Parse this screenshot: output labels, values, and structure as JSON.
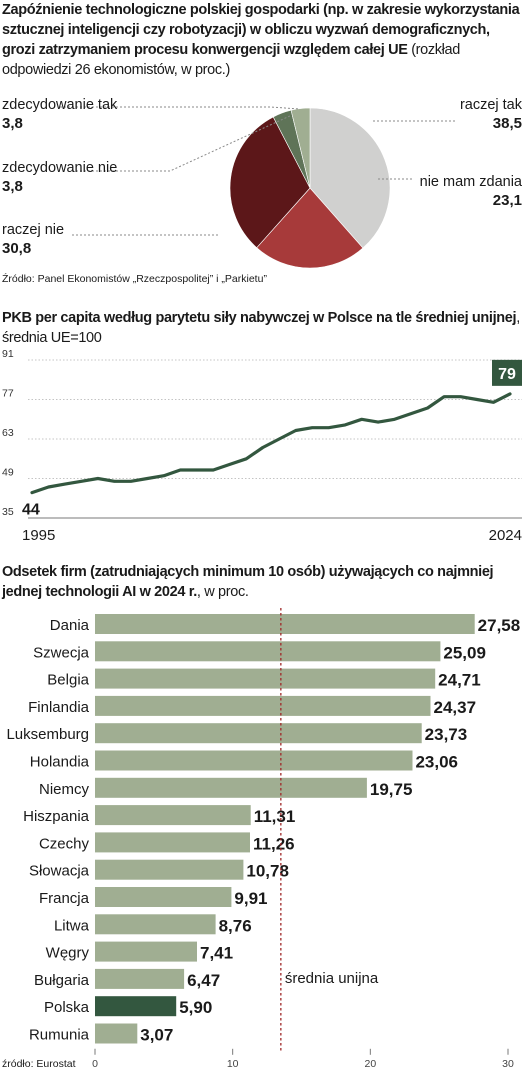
{
  "pie_section": {
    "title_bold": "Zapóźnienie technologiczne polskiej gospodarki (np. w zakresie wykorzystania sztucznej inteligencji czy robotyzacji) w obliczu wyzwań demograficznych, grozi zatrzymaniem procesu konwergencji względem całej UE",
    "title_sub": " (rozkład odpowiedzi 26 ekonomistów, w proc.)",
    "source": "Źródło: Panel Ekonomistów „Rzeczpospolitej” i „Parkietu”"
  },
  "line_section": {
    "title_bold": "PKB per capita według parytetu siły nabywczej w Polsce na tle średniej unijnej",
    "title_sub": ", średnia UE=100"
  },
  "bar_section": {
    "title_bold": "Odsetek firm (zatrudniających minimum 10 osób) używających co najmniej jednej technologii AI w 2024 r.",
    "title_sub": ", w proc.",
    "average_label": "średnia unijna",
    "source": "źródło: Eurostat"
  },
  "colors": {
    "pie_raczej_tak": "#d0d0cf",
    "pie_nie_mam_zdania": "#a73a3a",
    "pie_raczej_nie": "#5c1719",
    "pie_zdecydowanie_nie": "#5f7458",
    "pie_zdecydowanie_tak": "#a0ae92",
    "line": "#33573f",
    "bar": "#a0ae92",
    "bar_highlight": "#33573f",
    "average_line": "#a02828"
  },
  "chart_data": [
    {
      "type": "pie",
      "slices": [
        {
          "label": "raczej tak",
          "value": 38.5,
          "value_text": "38,5",
          "color_key": "pie_raczej_tak"
        },
        {
          "label": "nie mam zdania",
          "value": 23.1,
          "value_text": "23,1",
          "color_key": "pie_nie_mam_zdania"
        },
        {
          "label": "raczej nie",
          "value": 30.8,
          "value_text": "30,8",
          "color_key": "pie_raczej_nie"
        },
        {
          "label": "zdecydowanie nie",
          "value": 3.8,
          "value_text": "3,8",
          "color_key": "pie_zdecydowanie_nie"
        },
        {
          "label": "zdecydowanie tak",
          "value": 3.8,
          "value_text": "3,8",
          "color_key": "pie_zdecydowanie_tak"
        }
      ]
    },
    {
      "type": "line",
      "x": [
        1995,
        1996,
        1997,
        1998,
        1999,
        2000,
        2001,
        2002,
        2003,
        2004,
        2005,
        2006,
        2007,
        2008,
        2009,
        2010,
        2011,
        2012,
        2013,
        2014,
        2015,
        2016,
        2017,
        2018,
        2019,
        2020,
        2021,
        2022,
        2023,
        2024
      ],
      "values": [
        44,
        46,
        47,
        48,
        49,
        48,
        48,
        49,
        50,
        52,
        52,
        52,
        54,
        56,
        60,
        63,
        66,
        67,
        67,
        68,
        70,
        69,
        70,
        72,
        74,
        78,
        78,
        77,
        76,
        79
      ],
      "yticks": [
        35,
        49,
        63,
        77,
        91
      ],
      "ylim": [
        35,
        91
      ],
      "xtick_labels": [
        "1995",
        "2024"
      ],
      "start_label": "44",
      "end_label": "79",
      "grid": true
    },
    {
      "type": "bar",
      "orientation": "horizontal",
      "categories": [
        "Dania",
        "Szwecja",
        "Belgia",
        "Finlandia",
        "Luksemburg",
        "Holandia",
        "Niemcy",
        "Hiszpania",
        "Czechy",
        "Słowacja",
        "Francja",
        "Litwa",
        "Węgry",
        "Bułgaria",
        "Polska",
        "Rumunia"
      ],
      "values": [
        27.58,
        25.09,
        24.71,
        24.37,
        23.73,
        23.06,
        19.75,
        11.31,
        11.26,
        10.78,
        9.91,
        8.76,
        7.41,
        6.47,
        5.9,
        3.07
      ],
      "value_labels": [
        "27,58",
        "25,09",
        "24,71",
        "24,37",
        "23,73",
        "23,06",
        "19,75",
        "11,31",
        "11,26",
        "10,78",
        "9,91",
        "8,76",
        "7,41",
        "6,47",
        "5,90",
        "3,07"
      ],
      "highlight": "Polska",
      "average": 13.5,
      "xticks": [
        0,
        10,
        20,
        30
      ],
      "xlim": [
        0,
        30
      ]
    }
  ]
}
